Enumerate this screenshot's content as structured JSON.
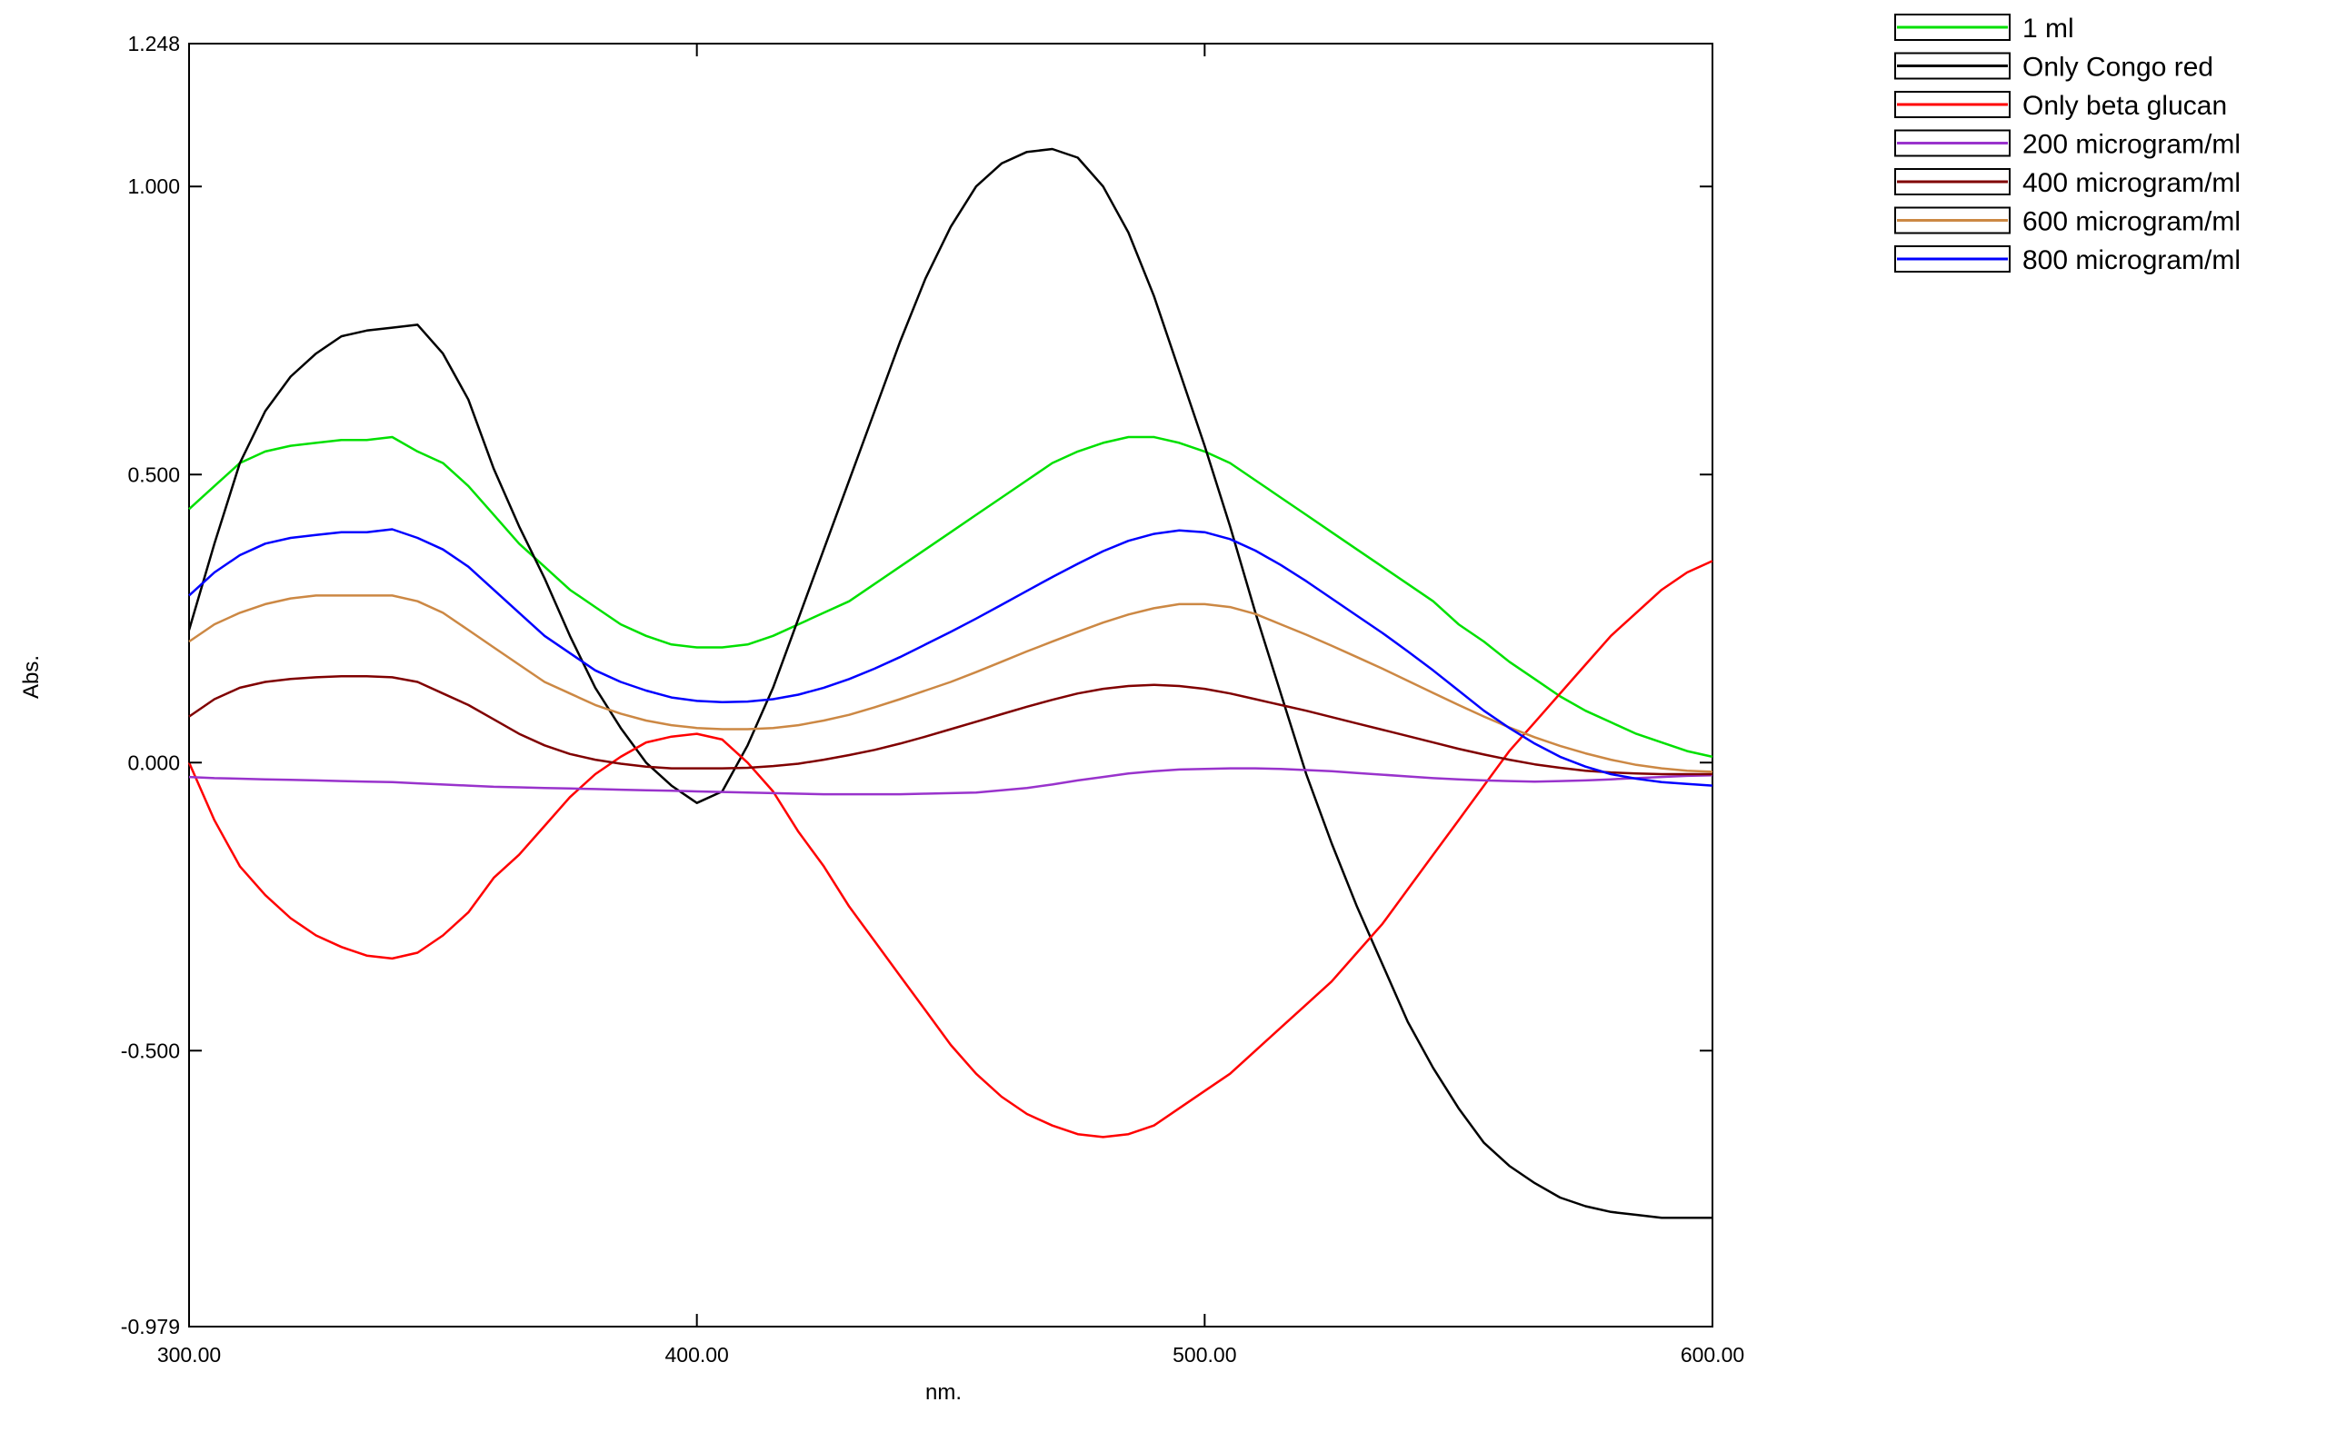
{
  "chart_data": {
    "type": "line",
    "title": "",
    "xlabel": "nm.",
    "ylabel": "Abs.",
    "xlim": [
      300,
      600
    ],
    "ylim": [
      -0.979,
      1.248
    ],
    "x_ticks": [
      300,
      400,
      500,
      600
    ],
    "x_tick_labels": [
      "300.00",
      "400.00",
      "500.00",
      "600.00"
    ],
    "y_ticks": [
      1.248,
      1.0,
      0.5,
      0.0,
      -0.5,
      -0.979
    ],
    "y_tick_labels": [
      "1.248",
      "1.000",
      "0.500",
      "0.000",
      "-0.500",
      "-0.979"
    ],
    "grid": false,
    "legend_position": "top-right outside plot",
    "x": [
      300,
      305,
      310,
      315,
      320,
      325,
      330,
      335,
      340,
      345,
      350,
      355,
      360,
      365,
      370,
      375,
      380,
      385,
      390,
      395,
      400,
      405,
      410,
      415,
      420,
      425,
      430,
      435,
      440,
      445,
      450,
      455,
      460,
      465,
      470,
      475,
      480,
      485,
      490,
      495,
      500,
      505,
      510,
      515,
      520,
      525,
      530,
      535,
      540,
      545,
      550,
      555,
      560,
      565,
      570,
      575,
      580,
      585,
      590,
      595,
      600
    ],
    "series": [
      {
        "name": "1 ml",
        "color": "#00e000",
        "values": [
          0.44,
          0.48,
          0.52,
          0.54,
          0.55,
          0.555,
          0.56,
          0.56,
          0.565,
          0.54,
          0.52,
          0.48,
          0.43,
          0.38,
          0.34,
          0.3,
          0.27,
          0.24,
          0.22,
          0.205,
          0.2,
          0.2,
          0.205,
          0.22,
          0.24,
          0.26,
          0.28,
          0.31,
          0.34,
          0.37,
          0.4,
          0.43,
          0.46,
          0.49,
          0.52,
          0.54,
          0.555,
          0.565,
          0.565,
          0.555,
          0.54,
          0.52,
          0.49,
          0.46,
          0.43,
          0.4,
          0.37,
          0.34,
          0.31,
          0.28,
          0.24,
          0.21,
          0.175,
          0.145,
          0.115,
          0.09,
          0.07,
          0.05,
          0.035,
          0.02,
          0.01
        ]
      },
      {
        "name": "Only Congo red",
        "color": "#000000",
        "values": [
          0.23,
          0.38,
          0.52,
          0.61,
          0.67,
          0.71,
          0.74,
          0.75,
          0.755,
          0.76,
          0.71,
          0.63,
          0.51,
          0.41,
          0.32,
          0.22,
          0.13,
          0.06,
          0.0,
          -0.04,
          -0.07,
          -0.05,
          0.03,
          0.13,
          0.25,
          0.37,
          0.49,
          0.61,
          0.73,
          0.84,
          0.93,
          1.0,
          1.04,
          1.06,
          1.065,
          1.05,
          1.0,
          0.92,
          0.81,
          0.68,
          0.55,
          0.41,
          0.26,
          0.12,
          -0.02,
          -0.14,
          -0.25,
          -0.35,
          -0.45,
          -0.53,
          -0.6,
          -0.66,
          -0.7,
          -0.73,
          -0.755,
          -0.77,
          -0.78,
          -0.785,
          -0.79,
          -0.79,
          -0.79
        ]
      },
      {
        "name": "Only beta glucan",
        "color": "#ff0000",
        "values": [
          0.0,
          -0.1,
          -0.18,
          -0.23,
          -0.27,
          -0.3,
          -0.32,
          -0.335,
          -0.34,
          -0.33,
          -0.3,
          -0.26,
          -0.2,
          -0.16,
          -0.11,
          -0.06,
          -0.02,
          0.01,
          0.035,
          0.045,
          0.05,
          0.04,
          0.0,
          -0.05,
          -0.12,
          -0.18,
          -0.25,
          -0.31,
          -0.37,
          -0.43,
          -0.49,
          -0.54,
          -0.58,
          -0.61,
          -0.63,
          -0.645,
          -0.65,
          -0.645,
          -0.63,
          -0.6,
          -0.57,
          -0.54,
          -0.5,
          -0.46,
          -0.42,
          -0.38,
          -0.33,
          -0.28,
          -0.22,
          -0.16,
          -0.1,
          -0.04,
          0.02,
          0.07,
          0.12,
          0.17,
          0.22,
          0.26,
          0.3,
          0.33,
          0.35
        ]
      },
      {
        "name": "200 microgram/ml",
        "color": "#9933cc",
        "values": [
          -0.025,
          -0.027,
          -0.028,
          -0.029,
          -0.03,
          -0.031,
          -0.032,
          -0.033,
          -0.034,
          -0.036,
          -0.038,
          -0.04,
          -0.042,
          -0.043,
          -0.044,
          -0.045,
          -0.046,
          -0.047,
          -0.048,
          -0.049,
          -0.05,
          -0.051,
          -0.052,
          -0.053,
          -0.054,
          -0.055,
          -0.055,
          -0.055,
          -0.055,
          -0.054,
          -0.053,
          -0.052,
          -0.048,
          -0.044,
          -0.038,
          -0.031,
          -0.025,
          -0.019,
          -0.015,
          -0.012,
          -0.011,
          -0.01,
          -0.01,
          -0.011,
          -0.013,
          -0.015,
          -0.018,
          -0.021,
          -0.024,
          -0.027,
          -0.029,
          -0.031,
          -0.032,
          -0.033,
          -0.032,
          -0.031,
          -0.029,
          -0.027,
          -0.025,
          -0.023,
          -0.022
        ]
      },
      {
        "name": "400 microgram/ml",
        "color": "#800000",
        "values": [
          0.08,
          0.11,
          0.13,
          0.14,
          0.145,
          0.148,
          0.15,
          0.15,
          0.148,
          0.14,
          0.12,
          0.1,
          0.075,
          0.05,
          0.03,
          0.015,
          0.005,
          -0.002,
          -0.007,
          -0.01,
          -0.01,
          -0.01,
          -0.009,
          -0.006,
          -0.002,
          0.005,
          0.013,
          0.022,
          0.033,
          0.045,
          0.058,
          0.071,
          0.084,
          0.097,
          0.109,
          0.12,
          0.128,
          0.133,
          0.135,
          0.133,
          0.128,
          0.12,
          0.11,
          0.1,
          0.09,
          0.079,
          0.068,
          0.057,
          0.046,
          0.035,
          0.024,
          0.014,
          0.005,
          -0.003,
          -0.009,
          -0.014,
          -0.017,
          -0.019,
          -0.02,
          -0.02,
          -0.02
        ]
      },
      {
        "name": "600 microgram/ml",
        "color": "#cc8844",
        "values": [
          0.21,
          0.24,
          0.26,
          0.275,
          0.285,
          0.29,
          0.29,
          0.29,
          0.29,
          0.28,
          0.26,
          0.23,
          0.2,
          0.17,
          0.14,
          0.12,
          0.1,
          0.085,
          0.073,
          0.065,
          0.06,
          0.058,
          0.058,
          0.06,
          0.065,
          0.073,
          0.083,
          0.096,
          0.11,
          0.125,
          0.14,
          0.157,
          0.175,
          0.193,
          0.21,
          0.227,
          0.243,
          0.257,
          0.268,
          0.275,
          0.275,
          0.27,
          0.258,
          0.24,
          0.222,
          0.203,
          0.183,
          0.163,
          0.142,
          0.121,
          0.1,
          0.08,
          0.061,
          0.044,
          0.029,
          0.016,
          0.005,
          -0.004,
          -0.01,
          -0.014,
          -0.016
        ]
      },
      {
        "name": "800 microgram/ml",
        "color": "#0000ff",
        "values": [
          0.29,
          0.33,
          0.36,
          0.38,
          0.39,
          0.395,
          0.4,
          0.4,
          0.405,
          0.39,
          0.37,
          0.34,
          0.3,
          0.26,
          0.22,
          0.19,
          0.16,
          0.14,
          0.125,
          0.113,
          0.107,
          0.105,
          0.106,
          0.11,
          0.118,
          0.13,
          0.145,
          0.163,
          0.183,
          0.205,
          0.227,
          0.25,
          0.274,
          0.298,
          0.322,
          0.345,
          0.367,
          0.385,
          0.397,
          0.403,
          0.4,
          0.388,
          0.368,
          0.343,
          0.315,
          0.285,
          0.255,
          0.225,
          0.193,
          0.16,
          0.125,
          0.09,
          0.06,
          0.033,
          0.01,
          -0.007,
          -0.02,
          -0.028,
          -0.034,
          -0.037,
          -0.04
        ]
      }
    ]
  }
}
